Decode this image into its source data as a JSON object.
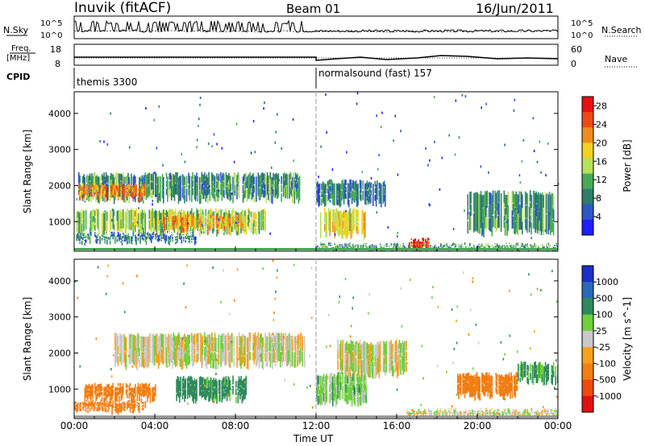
{
  "header": {
    "station": "Inuvik (fitACF)",
    "beam": "Beam 01",
    "date": "16/Jun/2011"
  },
  "top_panel": {
    "left_label": "N.Sky",
    "right_label": "N.Search",
    "left_ticks": [
      "10^5",
      "10^0"
    ],
    "right_ticks": [
      "10^5",
      "10^0"
    ]
  },
  "freq_panel": {
    "left_label_line1": "Freq.",
    "left_label_line2": "[MHz]",
    "right_label": "Nave",
    "left_ticks": [
      "18",
      "8"
    ],
    "right_ticks": [
      "60",
      "0"
    ]
  },
  "cpid": {
    "label": "CPID",
    "programs": [
      {
        "name": "themis 3300",
        "start_hour": 0
      },
      {
        "name": "normalsound (fast) 157",
        "start_hour": 12
      }
    ]
  },
  "colors": {
    "power": [
      "#1f1fff",
      "#2d57c8",
      "#2f7d6a",
      "#49a85a",
      "#b9e05a",
      "#f2d21e",
      "#f08a1e",
      "#ef4a14",
      "#e81010"
    ],
    "velocity": [
      "#1b2fc9",
      "#2a69b8",
      "#2e8a5a",
      "#6fcf3c",
      "#c8c8c8",
      "#f7a01e",
      "#f27e12",
      "#f04a0e",
      "#e21010"
    ]
  },
  "chart_data": [
    {
      "type": "heatmap",
      "title": "",
      "xlabel": "Time UT",
      "ylabel": "Slant Range [km]",
      "x_ticks": [
        "00:00",
        "04:00",
        "08:00",
        "12:00",
        "16:00",
        "20:00",
        "00:00"
      ],
      "xlim_hours": [
        0,
        24
      ],
      "y_ticks": [
        1000,
        2000,
        3000,
        4000
      ],
      "ylim": [
        180,
        4600
      ],
      "colorbar": {
        "label": "Power [dB]",
        "ticks": [
          4,
          8,
          12,
          16,
          20,
          24,
          28
        ],
        "range": [
          0,
          30
        ]
      },
      "echo_bands": [
        {
          "t0": 0.2,
          "t1": 11.2,
          "r0": 1600,
          "r1": 2300,
          "value": 10
        },
        {
          "t0": 0.2,
          "t1": 3.5,
          "r0": 1650,
          "r1": 2000,
          "value": 22
        },
        {
          "t0": 0,
          "t1": 9.5,
          "r0": 700,
          "r1": 1300,
          "value": 14
        },
        {
          "t0": 4.3,
          "t1": 8.5,
          "r0": 750,
          "r1": 1150,
          "value": 20
        },
        {
          "t0": 0.1,
          "t1": 6.0,
          "r0": 450,
          "r1": 650,
          "value": 8
        },
        {
          "t0": 12.0,
          "t1": 15.5,
          "r0": 1500,
          "r1": 2100,
          "value": 8
        },
        {
          "t0": 12.2,
          "t1": 14.5,
          "r0": 600,
          "r1": 1300,
          "value": 18
        },
        {
          "t0": 12.0,
          "t1": 24.0,
          "r0": 200,
          "r1": 350,
          "value": 10
        },
        {
          "t0": 16.5,
          "t1": 17.6,
          "r0": 200,
          "r1": 500,
          "value": 27
        },
        {
          "t0": 19.5,
          "t1": 23.8,
          "r0": 700,
          "r1": 1800,
          "value": 10
        }
      ]
    },
    {
      "type": "heatmap",
      "title": "",
      "xlabel": "Time UT",
      "ylabel": "Slant Range [km]",
      "x_ticks": [
        "00:00",
        "04:00",
        "08:00",
        "12:00",
        "16:00",
        "20:00",
        "00:00"
      ],
      "xlim_hours": [
        0,
        24
      ],
      "y_ticks": [
        1000,
        2000,
        3000,
        4000
      ],
      "ylim": [
        180,
        4600
      ],
      "colorbar": {
        "label": "Velocity [m s^-1]",
        "ticks": [
          "1000",
          "500",
          "100",
          "25",
          "-25",
          "-100",
          "-500",
          "-1000"
        ]
      },
      "echo_bands": [
        {
          "t0": 2.0,
          "t1": 11.5,
          "r0": 1650,
          "r1": 2500,
          "value": 0
        },
        {
          "t0": 0.5,
          "t1": 4.0,
          "r0": 700,
          "r1": 1100,
          "value": -300
        },
        {
          "t0": 0,
          "t1": 3.5,
          "r0": 400,
          "r1": 650,
          "value": -300
        },
        {
          "t0": 5.0,
          "t1": 8.5,
          "r0": 700,
          "r1": 1300,
          "value": 150
        },
        {
          "t0": 12.0,
          "t1": 14.5,
          "r0": 600,
          "r1": 1400,
          "value": 60
        },
        {
          "t0": 13.0,
          "t1": 16.5,
          "r0": 1400,
          "r1": 2300,
          "value": 0
        },
        {
          "t0": 16.5,
          "t1": 24.0,
          "r0": 200,
          "r1": 400,
          "value": 0
        },
        {
          "t0": 19.0,
          "t1": 22.0,
          "r0": 800,
          "r1": 1400,
          "value": -400
        },
        {
          "t0": 22.0,
          "t1": 24.0,
          "r0": 1200,
          "r1": 1700,
          "value": 120
        }
      ]
    }
  ]
}
